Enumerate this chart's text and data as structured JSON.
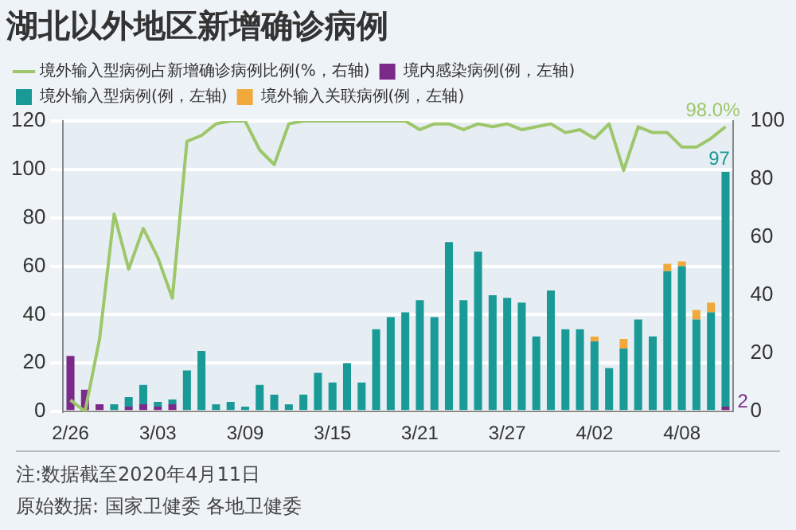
{
  "chart_data": {
    "type": "bar",
    "title": "湖北以外地区新增确诊病例",
    "categories": [
      "2/26",
      null,
      null,
      null,
      null,
      null,
      "3/03",
      null,
      null,
      null,
      null,
      null,
      "3/09",
      null,
      null,
      null,
      null,
      null,
      "3/15",
      null,
      null,
      null,
      null,
      null,
      "3/21",
      null,
      null,
      null,
      null,
      null,
      "3/27",
      null,
      null,
      null,
      null,
      null,
      "4/02",
      null,
      null,
      null,
      null,
      null,
      "4/08",
      null,
      null,
      null
    ],
    "series": [
      {
        "name": "境内感染病例(例，左轴)",
        "color": "#7b2a8a",
        "values": [
          23,
          9,
          3,
          0,
          2,
          3,
          2,
          3,
          0,
          0,
          0,
          0,
          0,
          0,
          0,
          0,
          0,
          0,
          0,
          0,
          0,
          0,
          0,
          0,
          0,
          0,
          0,
          0,
          0,
          0,
          0,
          0,
          0,
          0,
          0,
          0,
          0,
          0,
          0,
          0,
          0,
          0,
          0,
          0,
          0,
          2
        ],
        "value_labels": [
          null,
          null,
          null,
          null,
          null,
          null,
          null,
          null,
          null,
          null,
          null,
          null,
          null,
          null,
          null,
          null,
          null,
          null,
          null,
          null,
          null,
          null,
          null,
          null,
          null,
          null,
          null,
          null,
          null,
          null,
          null,
          null,
          null,
          null,
          null,
          null,
          null,
          null,
          null,
          null,
          null,
          null,
          null,
          null,
          null,
          "2"
        ]
      },
      {
        "name": "境外输入型病例(例，左轴)",
        "color": "#1a9a96",
        "values": [
          0,
          0,
          0,
          3,
          4,
          8,
          2,
          2,
          17,
          25,
          3,
          4,
          2,
          11,
          7,
          3,
          7,
          16,
          12,
          20,
          12,
          34,
          39,
          41,
          46,
          39,
          70,
          46,
          66,
          48,
          47,
          45,
          31,
          50,
          34,
          34,
          29,
          18,
          26,
          38,
          31,
          58,
          60,
          38,
          41,
          97
        ],
        "value_labels": [
          null,
          null,
          null,
          null,
          null,
          null,
          null,
          null,
          null,
          null,
          null,
          null,
          null,
          null,
          null,
          null,
          null,
          null,
          null,
          null,
          null,
          null,
          null,
          null,
          null,
          null,
          null,
          null,
          null,
          null,
          null,
          null,
          null,
          null,
          null,
          null,
          null,
          null,
          null,
          null,
          null,
          null,
          null,
          null,
          null,
          "97"
        ]
      },
      {
        "name": "境外输入关联病例(例，左轴)",
        "color": "#f2a93b",
        "values": [
          0,
          0,
          0,
          0,
          0,
          0,
          0,
          0,
          0,
          0,
          0,
          0,
          0,
          0,
          0,
          0,
          0,
          0,
          0,
          0,
          0,
          0,
          0,
          0,
          0,
          0,
          0,
          0,
          0,
          0,
          0,
          0,
          0,
          0,
          0,
          0,
          2,
          0,
          4,
          0,
          0,
          3,
          2,
          4,
          4,
          0
        ]
      },
      {
        "name": "境外输入型病例占新增确诊病例比例(%，右轴)",
        "type": "line",
        "axis": "y2",
        "color": "#9dc76a",
        "values": [
          4,
          0,
          25,
          68,
          49,
          63,
          53,
          39,
          93,
          95,
          99,
          100,
          100,
          90,
          85,
          99,
          100,
          100,
          100,
          100,
          100,
          100,
          100,
          100,
          97,
          99,
          99,
          97,
          99,
          98,
          99,
          97,
          98,
          99,
          96,
          97,
          94,
          99,
          83,
          98,
          96,
          96,
          91,
          91,
          94,
          98
        ],
        "value_labels": [
          null,
          null,
          null,
          null,
          null,
          null,
          null,
          null,
          null,
          null,
          null,
          null,
          null,
          null,
          null,
          null,
          null,
          null,
          null,
          null,
          null,
          null,
          null,
          null,
          null,
          null,
          null,
          null,
          null,
          null,
          null,
          null,
          null,
          null,
          null,
          null,
          null,
          null,
          null,
          null,
          null,
          null,
          null,
          null,
          null,
          "98.0%"
        ]
      }
    ],
    "stacked": true,
    "marker": "none",
    "line_style": "solid",
    "ylim": [
      0,
      120
    ],
    "yticks": [
      0,
      20,
      40,
      60,
      80,
      100,
      120
    ],
    "y2lim": [
      0,
      100
    ],
    "y2ticks": [
      0,
      20,
      40,
      60,
      80,
      100
    ],
    "grid": "y",
    "legend": "top",
    "annotations": [
      "注:数据截至2020年4月11日",
      "原始数据: 国家卫健委 各地卫健委"
    ]
  }
}
